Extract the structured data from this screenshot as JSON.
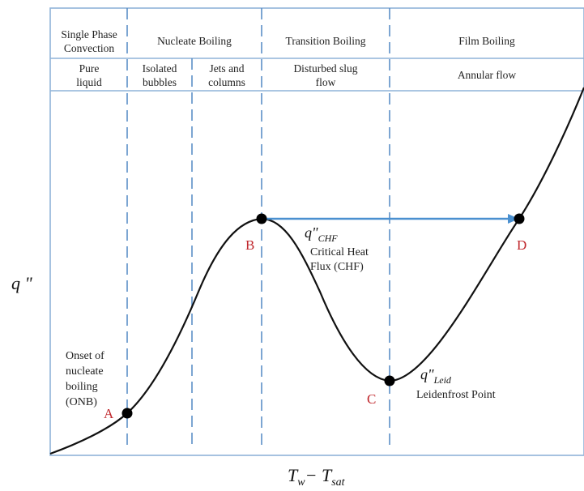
{
  "regimes": [
    {
      "name": "Single Phase",
      "name2": "Convection",
      "sub": "Pure",
      "sub2": "liquid"
    },
    {
      "name": "Nucleate Boiling",
      "sub_a": "Isolated",
      "sub_a2": "bubbles",
      "sub_b": "Jets and",
      "sub_b2": "columns"
    },
    {
      "name": "Transition Boiling",
      "sub": "Disturbed slug",
      "sub2": "flow"
    },
    {
      "name": "Film Boiling",
      "sub": "Annular flow"
    }
  ],
  "points": {
    "A": {
      "label": "A",
      "note": [
        "Onset of",
        "nucleate",
        "boiling",
        "(ONB)"
      ]
    },
    "B": {
      "label": "B",
      "sym": "q\"",
      "sub": "CHF",
      "note": [
        "Critical Heat",
        "Flux (CHF)"
      ]
    },
    "C": {
      "label": "C",
      "sym": "q\"",
      "sub": "Leid",
      "note": [
        "Leidenfrost Point"
      ]
    },
    "D": {
      "label": "D"
    }
  },
  "axes": {
    "y_label": "q \"",
    "x_label_main": "T",
    "x_label_sub1": "w",
    "x_label_op": "− T",
    "x_label_sub2": "sat"
  },
  "colors": {
    "frame": "#8fb3d9",
    "divider": "#5b8fc7",
    "arrow": "#4a90d0",
    "curve": "#111111",
    "point_label": "#c0282d"
  }
}
